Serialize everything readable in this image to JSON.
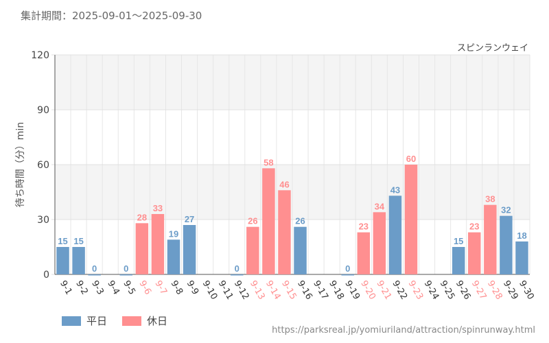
{
  "header": {
    "period_label": "集計期間：2025-09-01～2025-09-30"
  },
  "footer": {
    "source_url": "https://parksreal.jp/yomiuriland/attraction/spinrunway.html"
  },
  "colors": {
    "weekday": "#6b9cc8",
    "holiday": "#ff8f90",
    "grid_band": "#f4f4f4",
    "axis": "#555555"
  },
  "chart_data": {
    "type": "bar",
    "title": "スピンランウェイ",
    "ylabel": "待ち時間（分）min",
    "xlabel": "",
    "ylim": [
      0,
      120
    ],
    "yticks": [
      0,
      30,
      60,
      90,
      120
    ],
    "legend": [
      {
        "key": "weekday",
        "label": "平日"
      },
      {
        "key": "holiday",
        "label": "休日"
      }
    ],
    "categories": [
      "9-1",
      "9-2",
      "9-3",
      "9-4",
      "9-5",
      "9-6",
      "9-7",
      "9-8",
      "9-9",
      "9-10",
      "9-11",
      "9-12",
      "9-13",
      "9-14",
      "9-15",
      "9-16",
      "9-17",
      "9-18",
      "9-19",
      "9-20",
      "9-21",
      "9-22",
      "9-23",
      "9-24",
      "9-25",
      "9-26",
      "9-27",
      "9-28",
      "9-29",
      "9-30"
    ],
    "values": [
      15,
      15,
      0,
      null,
      0,
      28,
      33,
      19,
      27,
      null,
      null,
      0,
      26,
      58,
      46,
      26,
      null,
      null,
      0,
      23,
      34,
      43,
      60,
      null,
      null,
      15,
      23,
      38,
      32,
      18
    ],
    "day_type": [
      "weekday",
      "weekday",
      "weekday",
      "weekday",
      "weekday",
      "holiday",
      "holiday",
      "weekday",
      "weekday",
      "weekday",
      "weekday",
      "weekday",
      "holiday",
      "holiday",
      "holiday",
      "weekday",
      "weekday",
      "weekday",
      "weekday",
      "holiday",
      "holiday",
      "weekday",
      "holiday",
      "weekday",
      "weekday",
      "weekday",
      "holiday",
      "holiday",
      "weekday",
      "weekday"
    ]
  }
}
